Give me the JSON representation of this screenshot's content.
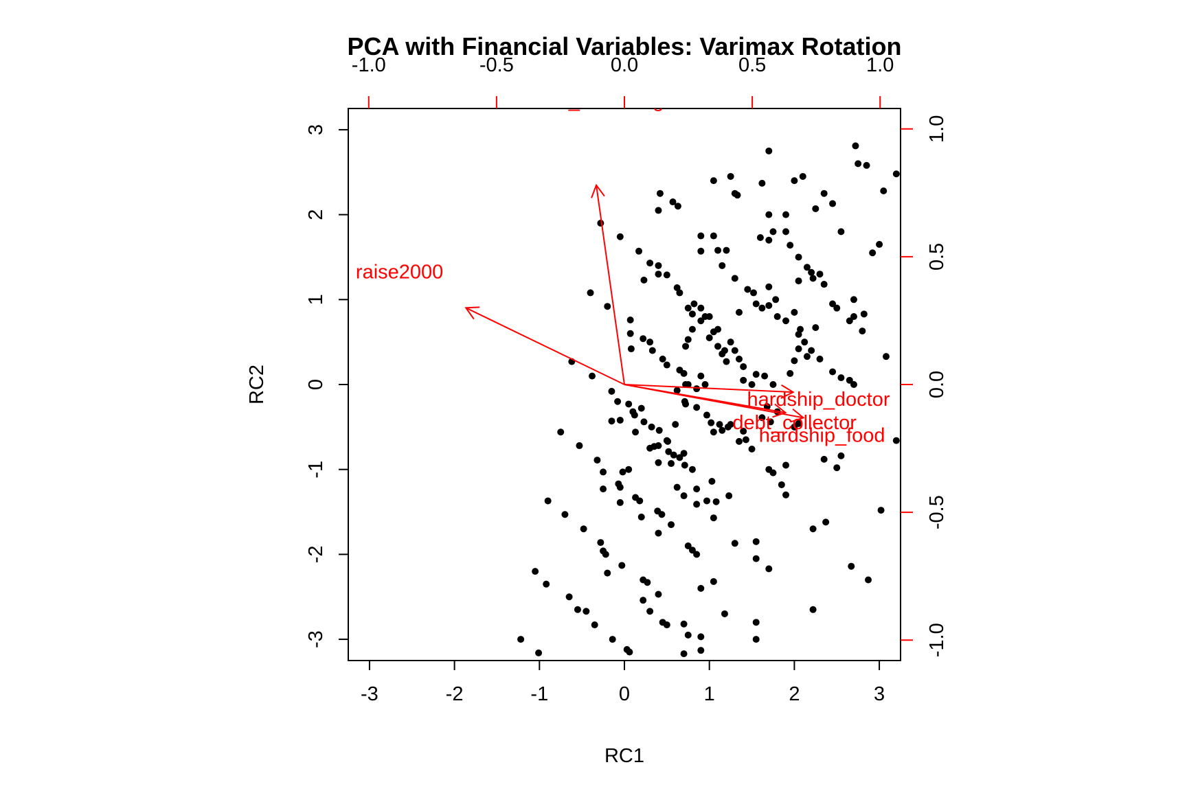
{
  "chart_data": {
    "type": "scatter",
    "subtype": "biplot",
    "title": "PCA with Financial Variables: Varimax Rotation",
    "xlabel": "RC1",
    "ylabel": "RC2",
    "xlim": [
      -3.25,
      3.25
    ],
    "ylim": [
      -3.25,
      3.25
    ],
    "xticks": [
      "-3",
      "-2",
      "-1",
      "0",
      "1",
      "2",
      "3"
    ],
    "yticks": [
      "-3",
      "-2",
      "-1",
      "0",
      "1",
      "2",
      "3"
    ],
    "loading_axis_lim": [
      -1.08,
      1.08
    ],
    "loading_ticks": [
      "-1.0",
      "-0.5",
      "0.0",
      "0.5",
      "1.0"
    ],
    "loading_color": "#ff0000",
    "point_color": "#000000",
    "loadings": [
      {
        "name": "financial_knowledge",
        "x": -0.11,
        "y": 0.78
      },
      {
        "name": "raise2000",
        "x": -0.62,
        "y": 0.3
      },
      {
        "name": "hardship_doctor",
        "x": 0.66,
        "y": -0.03
      },
      {
        "name": "debt_collector",
        "x": 0.63,
        "y": -0.11
      },
      {
        "name": "hardship_food",
        "x": 0.7,
        "y": -0.13
      }
    ],
    "points": [
      [
        -1.22,
        -3.0
      ],
      [
        -1.01,
        -3.16
      ],
      [
        -0.92,
        -2.35
      ],
      [
        -1.05,
        -2.2
      ],
      [
        -0.65,
        -2.5
      ],
      [
        -0.55,
        -2.65
      ],
      [
        -0.45,
        -2.67
      ],
      [
        -0.35,
        -2.83
      ],
      [
        -0.14,
        -3.0
      ],
      [
        0.03,
        -3.12
      ],
      [
        0.06,
        -3.15
      ],
      [
        -0.28,
        -1.86
      ],
      [
        -0.25,
        -1.96
      ],
      [
        -0.22,
        -2.0
      ],
      [
        -0.2,
        -2.22
      ],
      [
        -0.03,
        -2.13
      ],
      [
        -0.9,
        -1.37
      ],
      [
        -0.7,
        -1.53
      ],
      [
        -0.48,
        -1.7
      ],
      [
        -0.75,
        -0.56
      ],
      [
        -0.53,
        -0.72
      ],
      [
        -0.32,
        -0.89
      ],
      [
        -0.25,
        -1.03
      ],
      [
        -0.25,
        -1.23
      ],
      [
        -0.07,
        -1.17
      ],
      [
        -0.05,
        -1.21
      ],
      [
        -0.05,
        -1.39
      ],
      [
        -0.02,
        -1.03
      ],
      [
        0.13,
        -1.33
      ],
      [
        0.18,
        -1.37
      ],
      [
        0.2,
        -1.56
      ],
      [
        0.05,
        -1.0
      ],
      [
        0.22,
        -2.3
      ],
      [
        0.27,
        -2.33
      ],
      [
        0.22,
        -2.54
      ],
      [
        0.3,
        -2.67
      ],
      [
        0.4,
        -2.47
      ],
      [
        0.45,
        -2.8
      ],
      [
        0.5,
        -2.83
      ],
      [
        0.39,
        -1.49
      ],
      [
        0.44,
        -1.53
      ],
      [
        0.4,
        -1.75
      ],
      [
        0.55,
        -1.65
      ],
      [
        0.62,
        -1.21
      ],
      [
        0.7,
        -1.31
      ],
      [
        0.75,
        -1.9
      ],
      [
        0.8,
        -1.95
      ],
      [
        0.85,
        -2.0
      ],
      [
        0.9,
        -2.4
      ],
      [
        1.05,
        -2.32
      ],
      [
        1.05,
        -1.57
      ],
      [
        0.97,
        -1.37
      ],
      [
        1.03,
        -1.14
      ],
      [
        1.08,
        -1.38
      ],
      [
        1.23,
        -1.31
      ],
      [
        0.8,
        -1.0
      ],
      [
        0.85,
        -1.23
      ],
      [
        0.85,
        -1.41
      ],
      [
        0.7,
        -0.81
      ],
      [
        0.71,
        -0.95
      ],
      [
        0.65,
        -0.86
      ],
      [
        0.58,
        -0.83
      ],
      [
        0.55,
        -0.93
      ],
      [
        0.52,
        -0.79
      ],
      [
        0.51,
        -0.67
      ],
      [
        0.4,
        -0.72
      ],
      [
        0.4,
        -0.92
      ],
      [
        0.32,
        -0.5
      ],
      [
        0.35,
        -0.73
      ],
      [
        0.3,
        -0.75
      ],
      [
        0.13,
        -0.56
      ],
      [
        0.12,
        -0.36
      ],
      [
        0.05,
        -0.23
      ],
      [
        0.1,
        -0.32
      ],
      [
        -0.05,
        -0.42
      ],
      [
        -0.15,
        -0.08
      ],
      [
        -0.08,
        -0.2
      ],
      [
        0.2,
        -0.28
      ],
      [
        0.23,
        -0.44
      ],
      [
        0.41,
        -0.54
      ],
      [
        0.5,
        -0.66
      ],
      [
        0.6,
        -0.47
      ],
      [
        0.72,
        -0.23
      ],
      [
        0.72,
        0.0
      ],
      [
        0.62,
        -0.07
      ],
      [
        0.71,
        -0.2
      ],
      [
        0.85,
        -0.05
      ],
      [
        0.85,
        -0.27
      ],
      [
        0.97,
        -0.36
      ],
      [
        1.02,
        -0.45
      ],
      [
        1.05,
        -0.56
      ],
      [
        1.12,
        -0.47
      ],
      [
        1.15,
        -0.54
      ],
      [
        1.22,
        -0.5
      ],
      [
        1.25,
        -0.47
      ],
      [
        1.35,
        -0.67
      ],
      [
        1.43,
        -0.65
      ],
      [
        1.5,
        -0.76
      ],
      [
        1.4,
        -0.55
      ],
      [
        1.62,
        -0.39
      ],
      [
        1.68,
        -0.26
      ],
      [
        1.72,
        -0.44
      ],
      [
        1.7,
        -1.0
      ],
      [
        1.75,
        -1.04
      ],
      [
        1.85,
        -1.18
      ],
      [
        1.9,
        -1.3
      ],
      [
        1.9,
        -0.95
      ],
      [
        2.22,
        -1.7
      ],
      [
        2.37,
        -1.62
      ],
      [
        2.22,
        -2.65
      ],
      [
        2.67,
        -2.14
      ],
      [
        2.87,
        -2.3
      ],
      [
        1.3,
        -1.87
      ],
      [
        1.55,
        -1.85
      ],
      [
        1.55,
        -2.05
      ],
      [
        1.7,
        -2.17
      ],
      [
        1.55,
        -2.8
      ],
      [
        1.55,
        -3.0
      ],
      [
        1.18,
        -2.7
      ],
      [
        0.7,
        -2.82
      ],
      [
        0.75,
        -2.95
      ],
      [
        0.7,
        -3.17
      ],
      [
        0.9,
        -3.13
      ],
      [
        0.9,
        -2.97
      ],
      [
        -0.15,
        -0.43
      ],
      [
        1.8,
        -0.32
      ],
      [
        2.0,
        -0.5
      ],
      [
        2.05,
        -0.46
      ],
      [
        2.35,
        -0.88
      ],
      [
        2.5,
        -0.98
      ],
      [
        2.55,
        -0.84
      ],
      [
        3.02,
        -1.48
      ],
      [
        3.2,
        -0.66
      ],
      [
        -0.62,
        0.27
      ],
      [
        -0.38,
        0.1
      ],
      [
        -0.2,
        0.92
      ],
      [
        -0.4,
        1.08
      ],
      [
        -0.28,
        1.9
      ],
      [
        -0.05,
        1.74
      ],
      [
        0.07,
        0.76
      ],
      [
        0.07,
        0.6
      ],
      [
        0.08,
        0.42
      ],
      [
        0.22,
        0.54
      ],
      [
        0.3,
        0.5
      ],
      [
        0.33,
        0.4
      ],
      [
        0.45,
        0.3
      ],
      [
        0.5,
        0.23
      ],
      [
        0.65,
        0.17
      ],
      [
        0.7,
        0.13
      ],
      [
        0.75,
        0.0
      ],
      [
        0.95,
        0.0
      ],
      [
        0.9,
        0.1
      ],
      [
        0.75,
        0.53
      ],
      [
        0.72,
        0.45
      ],
      [
        0.8,
        0.65
      ],
      [
        0.9,
        0.75
      ],
      [
        0.95,
        0.8
      ],
      [
        1.0,
        0.8
      ],
      [
        1.1,
        0.65
      ],
      [
        1.1,
        0.45
      ],
      [
        1.18,
        0.4
      ],
      [
        1.2,
        0.27
      ],
      [
        1.25,
        0.5
      ],
      [
        1.35,
        0.3
      ],
      [
        1.4,
        0.21
      ],
      [
        1.4,
        0.05
      ],
      [
        1.5,
        0.0
      ],
      [
        1.55,
        0.12
      ],
      [
        1.65,
        0.1
      ],
      [
        1.75,
        0.0
      ],
      [
        1.95,
        0.13
      ],
      [
        2.0,
        0.28
      ],
      [
        2.05,
        0.42
      ],
      [
        2.05,
        0.59
      ],
      [
        2.12,
        0.5
      ],
      [
        2.25,
        0.67
      ],
      [
        2.3,
        0.3
      ],
      [
        2.45,
        0.15
      ],
      [
        2.55,
        0.08
      ],
      [
        2.65,
        0.05
      ],
      [
        2.7,
        0.0
      ],
      [
        0.17,
        1.57
      ],
      [
        0.3,
        1.43
      ],
      [
        0.4,
        1.4
      ],
      [
        0.4,
        1.3
      ],
      [
        0.23,
        1.23
      ],
      [
        0.5,
        1.29
      ],
      [
        0.62,
        1.14
      ],
      [
        0.65,
        1.08
      ],
      [
        0.75,
        0.9
      ],
      [
        0.8,
        0.83
      ],
      [
        0.82,
        0.95
      ],
      [
        0.9,
        0.9
      ],
      [
        1.0,
        0.55
      ],
      [
        1.05,
        0.62
      ],
      [
        1.15,
        0.36
      ],
      [
        1.3,
        0.4
      ],
      [
        1.35,
        0.85
      ],
      [
        1.45,
        1.12
      ],
      [
        1.52,
        1.08
      ],
      [
        1.55,
        0.95
      ],
      [
        1.62,
        0.9
      ],
      [
        1.7,
        0.93
      ],
      [
        1.7,
        1.15
      ],
      [
        1.78,
        1.0
      ],
      [
        1.8,
        0.8
      ],
      [
        1.9,
        0.75
      ],
      [
        2.0,
        0.85
      ],
      [
        2.07,
        0.65
      ],
      [
        2.15,
        0.33
      ],
      [
        2.2,
        0.4
      ],
      [
        2.22,
        1.25
      ],
      [
        2.3,
        1.3
      ],
      [
        2.35,
        1.18
      ],
      [
        2.45,
        0.95
      ],
      [
        2.5,
        0.9
      ],
      [
        2.65,
        0.75
      ],
      [
        2.7,
        0.8
      ],
      [
        2.8,
        0.63
      ],
      [
        2.82,
        0.83
      ],
      [
        2.92,
        1.55
      ],
      [
        3.0,
        1.65
      ],
      [
        2.7,
        1.0
      ],
      [
        0.9,
        1.57
      ],
      [
        0.9,
        1.75
      ],
      [
        1.05,
        1.75
      ],
      [
        1.1,
        1.58
      ],
      [
        1.2,
        1.58
      ],
      [
        1.15,
        1.4
      ],
      [
        1.3,
        1.25
      ],
      [
        1.6,
        1.73
      ],
      [
        1.7,
        1.7
      ],
      [
        1.75,
        1.8
      ],
      [
        1.9,
        1.8
      ],
      [
        1.95,
        1.64
      ],
      [
        2.05,
        1.5
      ],
      [
        2.05,
        1.22
      ],
      [
        2.15,
        1.38
      ],
      [
        2.2,
        1.32
      ],
      [
        1.7,
        2.0
      ],
      [
        1.9,
        2.0
      ],
      [
        1.62,
        2.37
      ],
      [
        1.7,
        2.75
      ],
      [
        2.0,
        2.4
      ],
      [
        2.1,
        2.45
      ],
      [
        2.25,
        2.07
      ],
      [
        2.35,
        2.25
      ],
      [
        2.45,
        2.13
      ],
      [
        2.55,
        1.8
      ],
      [
        2.72,
        2.81
      ],
      [
        2.75,
        2.6
      ],
      [
        2.85,
        2.58
      ],
      [
        3.05,
        2.28
      ],
      [
        3.2,
        2.48
      ],
      [
        0.4,
        2.05
      ],
      [
        0.42,
        2.25
      ],
      [
        0.57,
        2.15
      ],
      [
        0.63,
        2.1
      ],
      [
        1.05,
        2.4
      ],
      [
        1.25,
        2.45
      ],
      [
        1.3,
        2.25
      ],
      [
        1.33,
        2.23
      ],
      [
        3.08,
        0.33
      ]
    ]
  }
}
